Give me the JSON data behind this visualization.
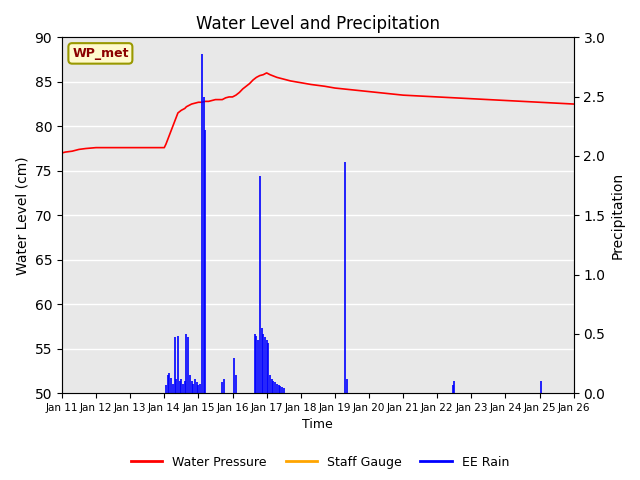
{
  "title": "Water Level and Precipitation",
  "xlabel": "Time",
  "ylabel_left": "Water Level (cm)",
  "ylabel_right": "Precipitation",
  "ylim_left": [
    50,
    90
  ],
  "ylim_right": [
    0.0,
    3.0
  ],
  "yticks_left": [
    50,
    55,
    60,
    65,
    70,
    75,
    80,
    85,
    90
  ],
  "yticks_right": [
    0.0,
    0.5,
    1.0,
    1.5,
    2.0,
    2.5,
    3.0
  ],
  "xtick_labels": [
    "Jan 11",
    "Jan 12",
    "Jan 13",
    "Jan 14",
    "Jan 15",
    "Jan 16",
    "Jan 17",
    "Jan 18",
    "Jan 19",
    "Jan 20",
    "Jan 21",
    "Jan 22",
    "Jan 23",
    "Jan 24",
    "Jan 25",
    "Jan 26"
  ],
  "annotation_text": "WP_met",
  "annotation_color": "#8B0000",
  "annotation_bg": "#FFFACD",
  "annotation_border": "#999900",
  "legend_labels": [
    "Water Pressure",
    "Staff Gauge",
    "EE Rain"
  ],
  "legend_colors": [
    "red",
    "orange",
    "blue"
  ],
  "background_color": "#E8E8E8",
  "water_pressure_x": [
    0,
    0.1,
    0.3,
    0.5,
    0.7,
    1.0,
    1.3,
    1.7,
    2.0,
    2.3,
    2.5,
    2.7,
    2.9,
    3.0,
    3.05,
    3.1,
    3.15,
    3.2,
    3.25,
    3.3,
    3.4,
    3.5,
    3.6,
    3.65,
    3.7,
    3.75,
    3.8,
    3.9,
    4.0,
    4.1,
    4.2,
    4.3,
    4.4,
    4.5,
    4.6,
    4.7,
    4.75,
    4.8,
    4.9,
    5.0,
    5.1,
    5.2,
    5.3,
    5.4,
    5.5,
    5.6,
    5.7,
    5.8,
    5.9,
    6.0,
    6.1,
    6.3,
    6.5,
    6.7,
    7.0,
    7.3,
    7.5,
    7.7,
    8.0,
    8.5,
    9.0,
    9.5,
    10.0,
    10.5,
    11.0,
    11.5,
    12.0,
    12.5,
    13.0,
    13.5,
    14.0,
    14.5,
    15.0
  ],
  "water_pressure_y": [
    77.0,
    77.1,
    77.2,
    77.4,
    77.5,
    77.6,
    77.6,
    77.6,
    77.6,
    77.6,
    77.6,
    77.6,
    77.6,
    77.6,
    78.0,
    78.5,
    79.0,
    79.5,
    80.0,
    80.5,
    81.5,
    81.8,
    82.0,
    82.2,
    82.3,
    82.4,
    82.5,
    82.6,
    82.7,
    82.7,
    82.8,
    82.8,
    82.9,
    83.0,
    83.0,
    83.0,
    83.1,
    83.2,
    83.3,
    83.3,
    83.5,
    83.8,
    84.2,
    84.5,
    84.8,
    85.2,
    85.5,
    85.7,
    85.8,
    86.0,
    85.8,
    85.5,
    85.3,
    85.1,
    84.9,
    84.7,
    84.6,
    84.5,
    84.3,
    84.1,
    83.9,
    83.7,
    83.5,
    83.4,
    83.3,
    83.2,
    83.1,
    83.0,
    82.9,
    82.8,
    82.7,
    82.6,
    82.5
  ],
  "rain_x": [
    3.05,
    3.1,
    3.15,
    3.2,
    3.25,
    3.3,
    3.35,
    3.4,
    3.45,
    3.5,
    3.55,
    3.6,
    3.65,
    3.7,
    3.75,
    3.8,
    3.85,
    3.9,
    3.95,
    4.0,
    4.05,
    4.1,
    4.15,
    4.2,
    4.7,
    4.75,
    5.05,
    5.1,
    5.65,
    5.7,
    5.75,
    5.8,
    5.85,
    5.9,
    5.95,
    6.0,
    6.05,
    6.1,
    6.15,
    6.2,
    6.25,
    6.3,
    6.35,
    6.4,
    6.45,
    6.5,
    8.3,
    8.35,
    11.45,
    11.5,
    14.05
  ],
  "rain_y": [
    0.07,
    0.15,
    0.17,
    0.13,
    0.08,
    0.47,
    0.12,
    0.48,
    0.1,
    0.12,
    0.08,
    0.1,
    0.5,
    0.47,
    0.15,
    0.1,
    0.08,
    0.12,
    0.09,
    0.07,
    0.08,
    2.86,
    2.5,
    2.22,
    0.09,
    0.12,
    0.3,
    0.15,
    0.5,
    0.48,
    0.45,
    1.83,
    0.55,
    0.5,
    0.47,
    0.45,
    0.42,
    0.15,
    0.12,
    0.1,
    0.09,
    0.08,
    0.07,
    0.06,
    0.05,
    0.04,
    1.95,
    0.12,
    0.07,
    0.1,
    0.1
  ]
}
